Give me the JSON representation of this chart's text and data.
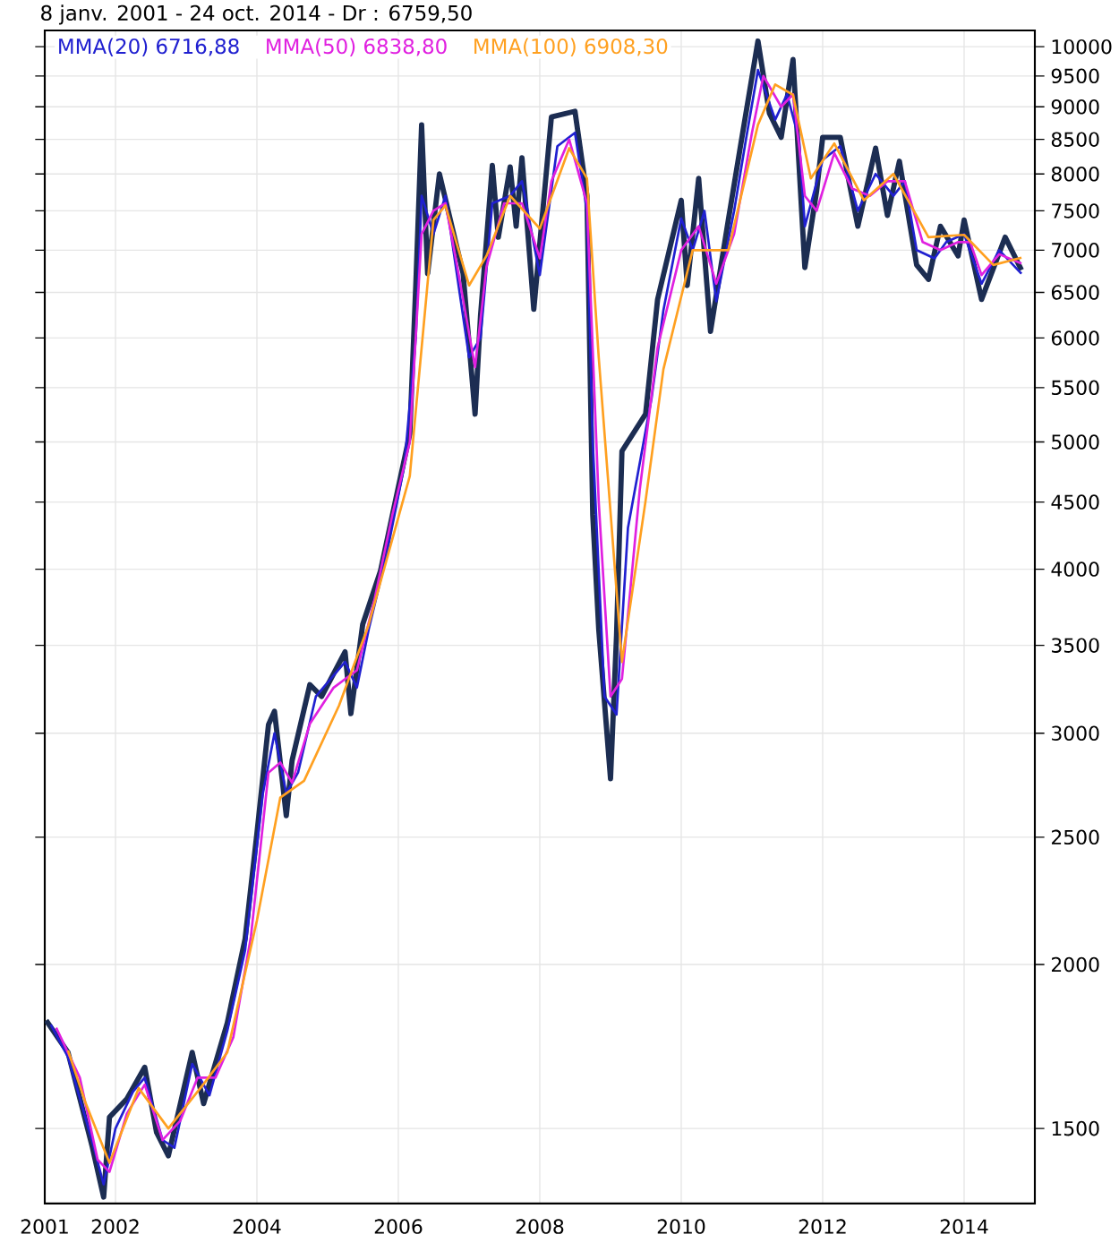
{
  "chart_data": {
    "type": "line",
    "title": "8 janv. 2001 - 24 oct. 2014 - Dr : 6759,50",
    "xlim": [
      "2001-01",
      "2015-01"
    ],
    "xticks": [
      {
        "value": "2001",
        "label": "2001"
      },
      {
        "value": "2002",
        "label": "2002"
      },
      {
        "value": "2004",
        "label": "2004"
      },
      {
        "value": "2006",
        "label": "2006"
      },
      {
        "value": "2008",
        "label": "2008"
      },
      {
        "value": "2010",
        "label": "2010"
      },
      {
        "value": "2012",
        "label": "2012"
      },
      {
        "value": "2014",
        "label": "2014"
      }
    ],
    "ylim": [
      1315,
      10290
    ],
    "yticks": [
      1500,
      2000,
      2500,
      3000,
      3500,
      4000,
      4500,
      5000,
      5500,
      6000,
      6500,
      7000,
      7500,
      8000,
      8500,
      9000,
      9500,
      10000
    ],
    "log": "y",
    "grid": true,
    "legend": "top left",
    "series": [
      {
        "color": "#1c2d52",
        "x": [
          "2001-01-08",
          "2001-05",
          "2001-09",
          "2001-11",
          "2001-12",
          "2002-03",
          "2002-06",
          "2002-08",
          "2002-10",
          "2003-02",
          "2003-04",
          "2003-08",
          "2003-11",
          "2004-01",
          "2004-03",
          "2004-04",
          "2004-06",
          "2004-07",
          "2004-10",
          "2004-12",
          "2005-04",
          "2005-05",
          "2005-07",
          "2005-10",
          "2006-01",
          "2006-03",
          "2006-04",
          "2006-05",
          "2006-06",
          "2006-08",
          "2006-12",
          "2007-02",
          "2007-03",
          "2007-05",
          "2007-06",
          "2007-08",
          "2007-09",
          "2007-10",
          "2007-12",
          "2008-03",
          "2008-07",
          "2008-09",
          "2008-10",
          "2008-11",
          "2009-01",
          "2009-02",
          "2009-03",
          "2009-07",
          "2009-09",
          "2010-01",
          "2010-02",
          "2010-04",
          "2010-06",
          "2010-09",
          "2010-11",
          "2011-02",
          "2011-04",
          "2011-06",
          "2011-08",
          "2011-10",
          "2011-12",
          "2012-01",
          "2012-04",
          "2012-07",
          "2012-10",
          "2012-12",
          "2013-02",
          "2013-05",
          "2013-07",
          "2013-09",
          "2013-12",
          "2014-01",
          "2014-04",
          "2014-08",
          "2014-10-24"
        ],
        "values": [
          1813,
          1714,
          1457,
          1330,
          1530,
          1580,
          1670,
          1490,
          1430,
          1714,
          1567,
          1805,
          2092,
          2517,
          3046,
          3118,
          2596,
          2860,
          3267,
          3200,
          3460,
          3105,
          3631,
          3990,
          4620,
          5070,
          6580,
          8720,
          6720,
          8000,
          6720,
          5250,
          6235,
          8120,
          7160,
          8100,
          7300,
          8230,
          6310,
          8840,
          8930,
          7700,
          4400,
          3600,
          2770,
          3560,
          4920,
          5250,
          6420,
          7640,
          6580,
          7940,
          6070,
          7380,
          8370,
          10100,
          8900,
          8530,
          9780,
          6790,
          7770,
          8530,
          8530,
          7300,
          8370,
          7440,
          8180,
          6820,
          6650,
          7300,
          6930,
          7380,
          6420,
          7160,
          6759.5
        ]
      },
      {
        "name": "MMA(20) 6716,88",
        "color": "#2020d0",
        "x": [
          "2001-02",
          "2001-05",
          "2001-09",
          "2001-11",
          "2002-01",
          "2002-04",
          "2002-06",
          "2002-09",
          "2002-11",
          "2003-02",
          "2003-05",
          "2003-08",
          "2003-11",
          "2004-02",
          "2004-04",
          "2004-06",
          "2004-08",
          "2004-11",
          "2005-04",
          "2005-06",
          "2005-08",
          "2005-11",
          "2006-02",
          "2006-04",
          "2006-05",
          "2006-07",
          "2006-09",
          "2007-01",
          "2007-03",
          "2007-05",
          "2007-08",
          "2007-10",
          "2008-01",
          "2008-04",
          "2008-07",
          "2008-09",
          "2008-10",
          "2008-12",
          "2009-02",
          "2009-04",
          "2009-08",
          "2009-10",
          "2010-01",
          "2010-03",
          "2010-05",
          "2010-07",
          "2010-10",
          "2010-12",
          "2011-02",
          "2011-05",
          "2011-07",
          "2011-09",
          "2011-10",
          "2012-01",
          "2012-04",
          "2012-07",
          "2012-10",
          "2013-01",
          "2013-03",
          "2013-05",
          "2013-08",
          "2013-10",
          "2014-01",
          "2014-04",
          "2014-07",
          "2014-10-24"
        ],
        "values": [
          1800,
          1700,
          1470,
          1360,
          1500,
          1600,
          1640,
          1470,
          1450,
          1680,
          1590,
          1780,
          2050,
          2700,
          3000,
          2700,
          2800,
          3200,
          3400,
          3250,
          3600,
          4100,
          4800,
          6000,
          7700,
          7200,
          7700,
          5800,
          6000,
          7600,
          7700,
          7900,
          6700,
          8400,
          8600,
          7500,
          5000,
          3200,
          3100,
          4300,
          5400,
          6300,
          7400,
          7000,
          7500,
          6400,
          7500,
          8500,
          9600,
          8800,
          9200,
          8500,
          7300,
          8200,
          8400,
          7500,
          8000,
          7700,
          7900,
          7000,
          6900,
          7100,
          7200,
          6600,
          7000,
          6716.88
        ]
      },
      {
        "name": "MMA(50) 6838,80",
        "color": "#e020e0",
        "x": [
          "2001-03",
          "2001-07",
          "2001-10",
          "2001-12",
          "2002-03",
          "2002-06",
          "2002-09",
          "2002-12",
          "2003-03",
          "2003-06",
          "2003-09",
          "2003-12",
          "2004-03",
          "2004-05",
          "2004-07",
          "2004-10",
          "2005-02",
          "2005-06",
          "2005-09",
          "2005-12",
          "2006-03",
          "2006-05",
          "2006-07",
          "2006-09",
          "2006-11",
          "2007-02",
          "2007-04",
          "2007-07",
          "2007-10",
          "2008-01",
          "2008-03",
          "2008-06",
          "2008-09",
          "2008-11",
          "2009-01",
          "2009-03",
          "2009-06",
          "2009-09",
          "2010-01",
          "2010-04",
          "2010-07",
          "2010-10",
          "2011-01",
          "2011-03",
          "2011-06",
          "2011-08",
          "2011-10",
          "2011-12",
          "2012-03",
          "2012-06",
          "2012-09",
          "2012-12",
          "2013-03",
          "2013-06",
          "2013-09",
          "2013-12",
          "2014-02",
          "2014-04",
          "2014-07",
          "2014-10-24"
        ],
        "values": [
          1790,
          1640,
          1420,
          1390,
          1540,
          1620,
          1470,
          1520,
          1640,
          1640,
          1760,
          2100,
          2800,
          2850,
          2750,
          3050,
          3250,
          3350,
          3800,
          4400,
          5000,
          7200,
          7500,
          7600,
          6800,
          5700,
          6800,
          7600,
          7600,
          6900,
          7900,
          8500,
          7600,
          4500,
          3200,
          3300,
          4600,
          5900,
          7000,
          7300,
          6600,
          7200,
          8600,
          9500,
          9000,
          9200,
          7700,
          7500,
          8300,
          7800,
          7700,
          7900,
          7900,
          7100,
          7000,
          7100,
          7100,
          6700,
          6950,
          6838.8
        ]
      },
      {
        "name": "MMA(100) 6908,30",
        "color": "#ffa020",
        "x": [
          "2001-05",
          "2001-08",
          "2001-12",
          "2002-05",
          "2002-10",
          "2003-04",
          "2003-08",
          "2004-01",
          "2004-05",
          "2004-09",
          "2005-03",
          "2005-08",
          "2006-03",
          "2006-07",
          "2006-09",
          "2007-01",
          "2007-04",
          "2007-08",
          "2008-01",
          "2008-06",
          "2008-09",
          "2008-11",
          "2009-03",
          "2009-07",
          "2009-10",
          "2010-03",
          "2010-09",
          "2011-02",
          "2011-05",
          "2011-08",
          "2011-11",
          "2012-03",
          "2012-08",
          "2013-01",
          "2013-07",
          "2014-01",
          "2014-06",
          "2014-10-24"
        ],
        "values": [
          1720,
          1567,
          1412,
          1610,
          1500,
          1622,
          1714,
          2160,
          2680,
          2760,
          3150,
          3630,
          4710,
          7380,
          7570,
          6580,
          6930,
          7700,
          7270,
          8370,
          7940,
          5800,
          3400,
          4510,
          5680,
          7000,
          7000,
          8720,
          9360,
          9190,
          7940,
          8440,
          7640,
          8000,
          7160,
          7190,
          6820,
          6908.3
        ]
      }
    ]
  }
}
